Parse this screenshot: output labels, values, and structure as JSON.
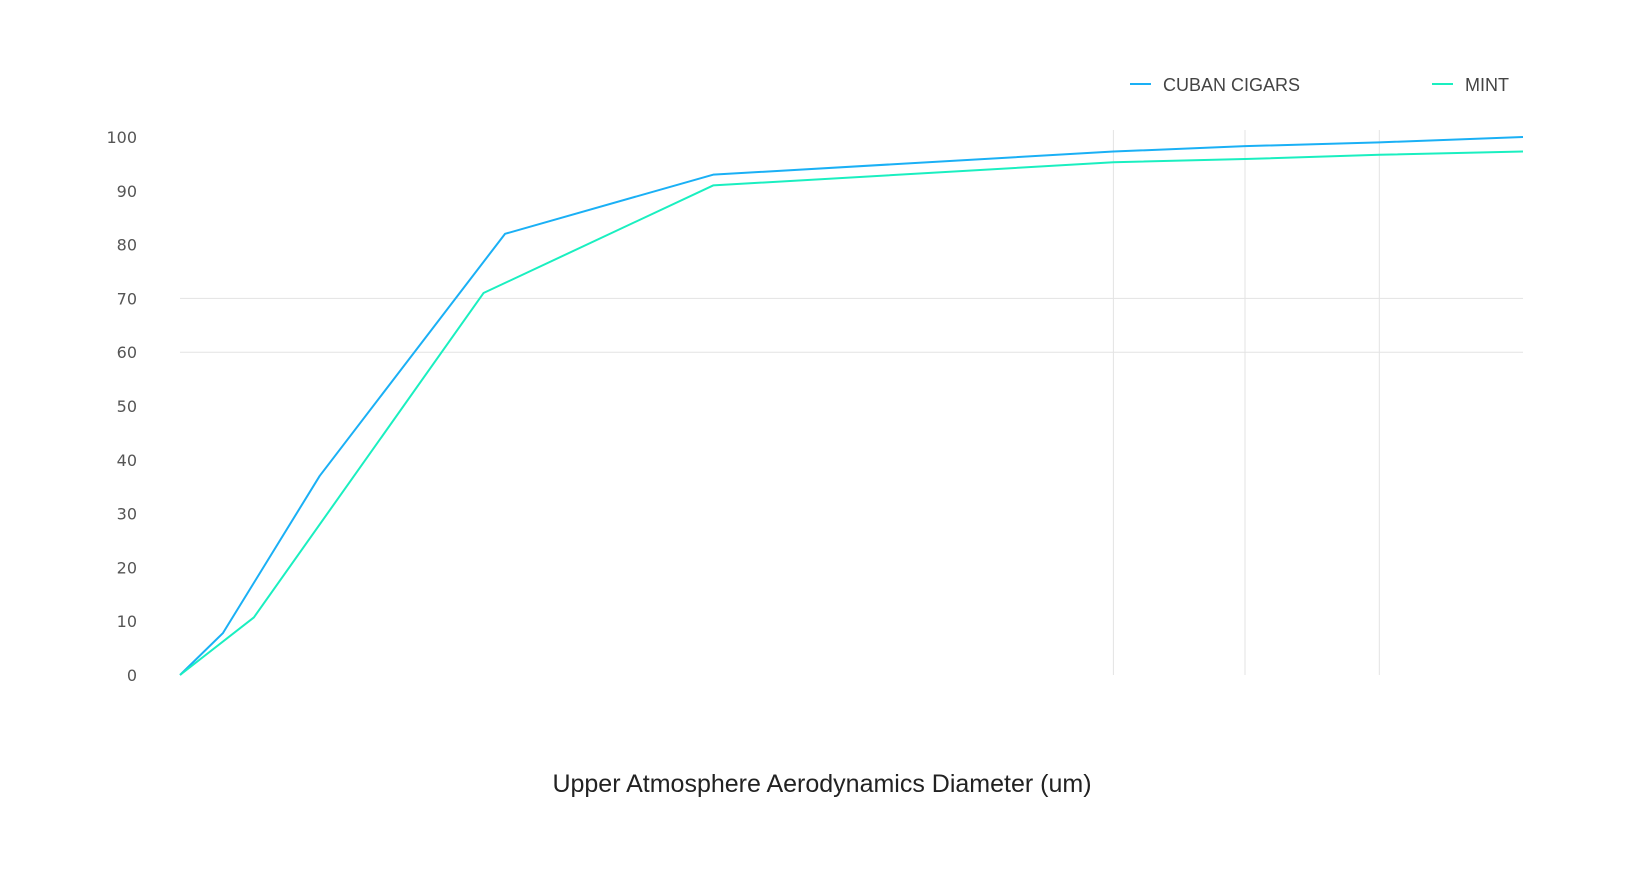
{
  "chart_data": {
    "type": "line",
    "title": "",
    "xlabel": "Upper Atmosphere Aerodynamics Diameter (um)",
    "ylabel": "",
    "ylim": [
      0,
      100
    ],
    "xlim": [
      0,
      100
    ],
    "x_units_note": "x-axis has no tick labels; x given as percent of axis",
    "yticks": [
      0,
      10,
      20,
      30,
      40,
      50,
      60,
      70,
      80,
      90,
      100
    ],
    "y_gridlines": [
      60,
      70
    ],
    "x_gridlines": [
      69.5,
      79.3,
      89.3
    ],
    "legend_placement": "top-right",
    "series": [
      {
        "name": "CUBAN CIGARS",
        "color": "#1ab0f5",
        "x": [
          0,
          3.2,
          10.4,
          24.2,
          39.7,
          69.5,
          79.3,
          89.3,
          100
        ],
        "y": [
          0,
          7.8,
          37,
          82,
          93,
          97.3,
          98.3,
          99,
          100
        ]
      },
      {
        "name": "MINT",
        "color": "#1aefc0",
        "x": [
          0,
          5.5,
          22.6,
          39.7,
          69.5,
          79.3,
          89.3,
          100
        ],
        "y": [
          0,
          10.7,
          71,
          91,
          95.3,
          95.9,
          96.7,
          97.3
        ]
      }
    ],
    "grid_color": "#e3e3e3"
  }
}
